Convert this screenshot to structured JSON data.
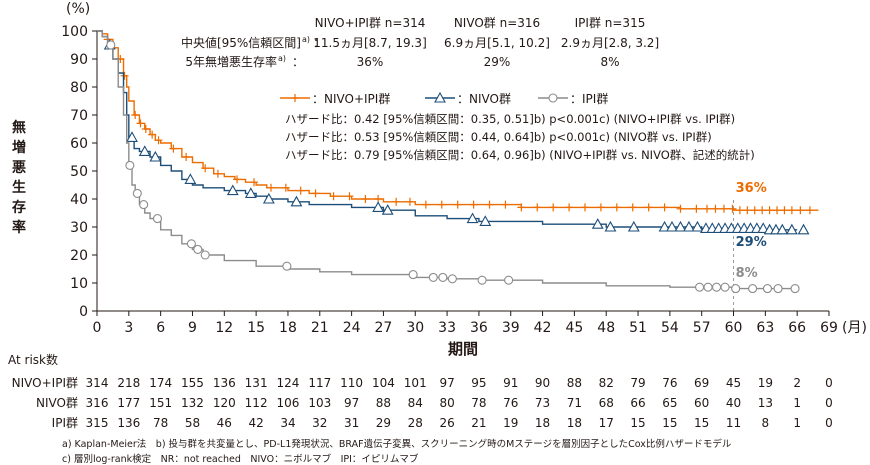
{
  "chart_data": {
    "type": "line",
    "y_unit": "(%)",
    "ylabel": "無増悪生存率",
    "xlabel": "期間",
    "x_unit": "(月)",
    "xlim": [
      0,
      69
    ],
    "ylim": [
      0,
      100
    ],
    "xticks": [
      0,
      3,
      6,
      9,
      12,
      15,
      18,
      21,
      24,
      27,
      30,
      33,
      36,
      39,
      42,
      45,
      48,
      51,
      54,
      57,
      60,
      63,
      66,
      69
    ],
    "yticks": [
      0,
      10,
      20,
      30,
      40,
      50,
      60,
      70,
      80,
      90,
      100
    ],
    "reference_x": 60,
    "header": {
      "groups": [
        "NIVO+IPI群 n=314",
        "NIVO群 n=316",
        "IPI群 n=315"
      ],
      "median_label": "中央値[95%信頼区間]",
      "median_label_sup": "a)",
      "median_values": [
        "11.5ヵ月[8.7, 19.3]",
        "6.9ヵ月[5.1, 10.2]",
        "2.9ヵ月[2.8, 3.2]"
      ],
      "pfs5_label": "5年無増悪生存率",
      "pfs5_label_sup": "a)",
      "pfs5_values": [
        "36%",
        "29%",
        "8%"
      ]
    },
    "legend": [
      "：NIVO+IPI群",
      "：NIVO群",
      "：IPI群"
    ],
    "hazard_lines": [
      "ハザード比：0.42 [95%信頼区間：0.35, 0.51]b) p<0.001c) (NIVO+IPI群 vs. IPI群)",
      "ハザード比：0.53 [95%信頼区間：0.44, 0.64]b) p<0.001c) (NIVO群 vs. IPI群)",
      "ハザード比：0.79 [95%信頼区間：0.64, 0.96]b) (NIVO+IPI群 vs. NIVO群、記述的統計)"
    ],
    "series": [
      {
        "name": "NIVO+IPI群",
        "color": "#ED6C00",
        "end_label": "36%",
        "x": [
          0,
          0.5,
          1,
          1.5,
          2,
          2.5,
          2.8,
          3,
          3.5,
          4,
          4.5,
          5,
          5.5,
          6,
          7,
          8,
          9,
          10,
          11,
          12,
          13,
          14,
          15,
          16,
          18,
          20,
          21,
          22,
          24,
          26,
          27,
          28,
          30,
          33,
          36,
          40,
          45,
          50,
          55,
          60,
          63,
          66,
          68
        ],
        "y": [
          100,
          99,
          97,
          94,
          90,
          84,
          80,
          75,
          70,
          67,
          65,
          63,
          61,
          60,
          58,
          55,
          53,
          51,
          49,
          48,
          47,
          46,
          45,
          44,
          43,
          42,
          42,
          41,
          40,
          40,
          39,
          39,
          38,
          38,
          38,
          37,
          37,
          37,
          36.5,
          36,
          36,
          36,
          36
        ]
      },
      {
        "name": "NIVO群",
        "color": "#1D4E78",
        "end_label": "29%",
        "x": [
          0,
          0.5,
          1,
          1.5,
          2,
          2.5,
          2.8,
          3,
          3.5,
          4,
          5,
          6,
          7,
          8,
          9,
          10,
          12,
          14,
          15,
          16,
          18,
          20,
          21,
          24,
          27,
          30,
          33,
          36,
          39,
          42,
          45,
          48,
          51,
          54,
          57,
          60,
          63,
          66
        ],
        "y": [
          100,
          98,
          95,
          90,
          85,
          78,
          70,
          62,
          58,
          57,
          55,
          52,
          50,
          47,
          45,
          44,
          43,
          42,
          41,
          40,
          39,
          38,
          38,
          37,
          36,
          34,
          33,
          32,
          32,
          31,
          31,
          30,
          30,
          30,
          29.5,
          29.5,
          29,
          29
        ]
      },
      {
        "name": "IPI群",
        "color": "#8C8C8C",
        "end_label": "8%",
        "x": [
          0,
          0.5,
          1,
          1.5,
          2,
          2.5,
          2.8,
          3,
          3.3,
          3.6,
          4,
          4.5,
          5,
          6,
          7,
          8,
          9,
          10,
          12,
          15,
          18,
          21,
          24,
          27,
          30,
          33,
          36,
          42,
          48,
          54,
          57,
          60,
          63,
          66
        ],
        "y": [
          100,
          98,
          95,
          90,
          80,
          70,
          60,
          52,
          45,
          42,
          38,
          35,
          33,
          29,
          27,
          24,
          22,
          20,
          18,
          16,
          15,
          14,
          13,
          13,
          12,
          11.5,
          11,
          10,
          9,
          8.5,
          8.5,
          8,
          8,
          8
        ]
      }
    ],
    "censor_marks": {
      "NIVO+IPI群": [
        1,
        1.5,
        2.2,
        2.6,
        3.6,
        4.1,
        4.6,
        5.2,
        5.8,
        7.2,
        8.4,
        10.2,
        11.4,
        13.2,
        14.8,
        16.4,
        17.8,
        19.2,
        20.6,
        22.3,
        23.8,
        25.3,
        26.5,
        28.2,
        29.5,
        31,
        32.5,
        34,
        35.5,
        37,
        38.5,
        40,
        41.5,
        43,
        44.5,
        46,
        47.5,
        49,
        50.5,
        52,
        53.5,
        55,
        56.5,
        57.5,
        58.3,
        59.1,
        59.9,
        60.6,
        61.3,
        62,
        62.7,
        63.4,
        64.1,
        64.8,
        65.5,
        66.3,
        67.2
      ],
      "NIVO群": [
        1.2,
        3.3,
        4.5,
        5.5,
        8.8,
        12.8,
        14.5,
        16.2,
        18.8,
        26.5,
        27.4,
        35.4,
        36.6,
        47.2,
        48.4,
        50.6,
        53.5,
        54.2,
        55,
        55.8,
        56.6,
        57.4,
        58,
        58.6,
        59.2,
        59.8,
        60.4,
        61,
        61.6,
        62.2,
        62.8,
        63.4,
        64,
        64.6,
        65.5,
        66.6
      ],
      "IPI群": [
        1.3,
        3.1,
        3.8,
        4.4,
        5.7,
        8.9,
        9.5,
        10.2,
        17.9,
        29.8,
        31.7,
        32.6,
        33.5,
        36.3,
        38.8,
        56.8,
        57.6,
        58.4,
        59.2,
        60.2,
        61.8,
        63.2,
        64.2,
        65.8
      ]
    },
    "at_risk": {
      "title": "At risk数",
      "rows": [
        {
          "label": "NIVO+IPI群",
          "values": [
            "314",
            "218",
            "174",
            "155",
            "136",
            "131",
            "124",
            "117",
            "110",
            "104",
            "101",
            "97",
            "95",
            "91",
            "90",
            "88",
            "82",
            "79",
            "76",
            "69",
            "45",
            "19",
            "2",
            "0"
          ]
        },
        {
          "label": "NIVO群",
          "values": [
            "316",
            "177",
            "151",
            "132",
            "120",
            "112",
            "106",
            "103",
            "97",
            "88",
            "84",
            "80",
            "78",
            "76",
            "73",
            "71",
            "68",
            "66",
            "65",
            "60",
            "40",
            "13",
            "1",
            "0"
          ]
        },
        {
          "label": "IPI群",
          "values": [
            "315",
            "136",
            "78",
            "58",
            "46",
            "42",
            "34",
            "32",
            "31",
            "29",
            "28",
            "26",
            "21",
            "19",
            "18",
            "18",
            "17",
            "15",
            "15",
            "15",
            "11",
            "8",
            "1",
            "0"
          ]
        }
      ]
    },
    "footnotes": [
      "a) Kaplan-Meier法　b) 投与群を共変量とし、PD-L1発現状況、BRAF遺伝子変異、スクリーニング時のMステージを層別因子としたCox比例ハザードモデル",
      "c) 層別log-rank検定　NR：not reached　NIVO：ニボルマブ　IPI：イピリムマブ"
    ]
  }
}
